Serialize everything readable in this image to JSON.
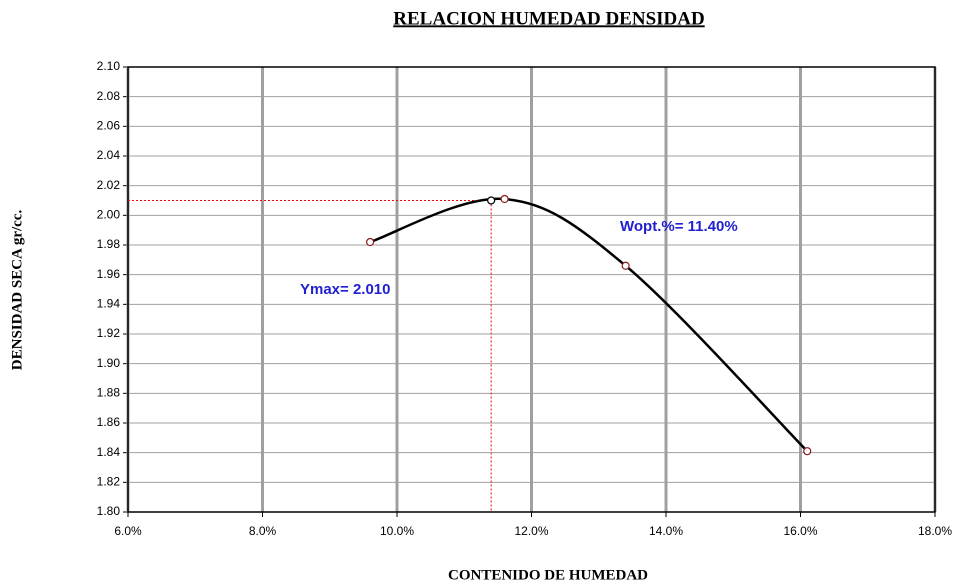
{
  "chart_data": {
    "type": "scatter",
    "title": "RELACION HUMEDAD DENSIDAD",
    "x_label": "CONTENIDO DE HUMEDAD",
    "y_label": "DENSIDAD SECA gr/cc.",
    "x": [
      9.6,
      11.6,
      13.4,
      16.1
    ],
    "values": [
      1.982,
      2.011,
      1.966,
      1.841
    ],
    "color": "#000000",
    "marker_color": "#8b1a1a",
    "optimum": {
      "x": 11.4,
      "y": 2.01
    },
    "guide_color": "#ff0000",
    "annotations": [
      "Ymax= 2.010",
      "Wopt.%= 11.40%"
    ],
    "annotation_color": "#1f1fd0",
    "xlim": [
      6,
      18
    ],
    "ylim": [
      1.8,
      2.1
    ],
    "xticks": [
      {
        "value": 6,
        "label": "6.0%"
      },
      {
        "value": 8,
        "label": "8.0%"
      },
      {
        "value": 10,
        "label": "10.0%"
      },
      {
        "value": 12,
        "label": "12.0%"
      },
      {
        "value": 14,
        "label": "14.0%"
      },
      {
        "value": 16,
        "label": "16.0%"
      },
      {
        "value": 18,
        "label": "18.0%"
      }
    ],
    "yticks": [
      {
        "value": 1.8,
        "label": "1.80"
      },
      {
        "value": 1.82,
        "label": "1.82"
      },
      {
        "value": 1.84,
        "label": "1.84"
      },
      {
        "value": 1.86,
        "label": "1.86"
      },
      {
        "value": 1.88,
        "label": "1.88"
      },
      {
        "value": 1.9,
        "label": "1.90"
      },
      {
        "value": 1.92,
        "label": "1.92"
      },
      {
        "value": 1.94,
        "label": "1.94"
      },
      {
        "value": 1.96,
        "label": "1.96"
      },
      {
        "value": 1.98,
        "label": "1.98"
      },
      {
        "value": 2.0,
        "label": "2.00"
      },
      {
        "value": 2.02,
        "label": "2.02"
      },
      {
        "value": 2.04,
        "label": "2.04"
      },
      {
        "value": 2.06,
        "label": "2.06"
      },
      {
        "value": 2.08,
        "label": "2.08"
      },
      {
        "value": 2.1,
        "label": "2.10"
      }
    ],
    "grid": true
  }
}
